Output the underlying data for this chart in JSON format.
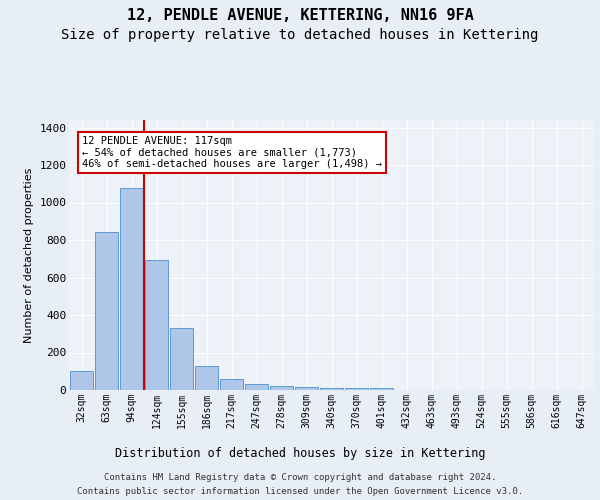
{
  "title": "12, PENDLE AVENUE, KETTERING, NN16 9FA",
  "subtitle": "Size of property relative to detached houses in Kettering",
  "xlabel": "Distribution of detached houses by size in Kettering",
  "ylabel": "Number of detached properties",
  "bar_labels": [
    "32sqm",
    "63sqm",
    "94sqm",
    "124sqm",
    "155sqm",
    "186sqm",
    "217sqm",
    "247sqm",
    "278sqm",
    "309sqm",
    "340sqm",
    "370sqm",
    "401sqm",
    "432sqm",
    "463sqm",
    "493sqm",
    "524sqm",
    "555sqm",
    "586sqm",
    "616sqm",
    "647sqm"
  ],
  "bar_values": [
    100,
    845,
    1080,
    695,
    330,
    130,
    60,
    30,
    20,
    15,
    10,
    10,
    10,
    0,
    0,
    0,
    0,
    0,
    0,
    0,
    0
  ],
  "bar_color": "#aec6e8",
  "bar_edgecolor": "#5b9bd5",
  "vline_color": "#cc0000",
  "annotation_text": "12 PENDLE AVENUE: 117sqm\n← 54% of detached houses are smaller (1,773)\n46% of semi-detached houses are larger (1,498) →",
  "annotation_box_color": "#ffffff",
  "annotation_box_edgecolor": "#cc0000",
  "ylim": [
    0,
    1440
  ],
  "yticks": [
    0,
    200,
    400,
    600,
    800,
    1000,
    1200,
    1400
  ],
  "bg_color": "#e8eef5",
  "plot_bg_color": "#edf2f8",
  "grid_color": "#ffffff",
  "footer_line1": "Contains HM Land Registry data © Crown copyright and database right 2024.",
  "footer_line2": "Contains public sector information licensed under the Open Government Licence v3.0.",
  "title_fontsize": 11,
  "subtitle_fontsize": 10
}
